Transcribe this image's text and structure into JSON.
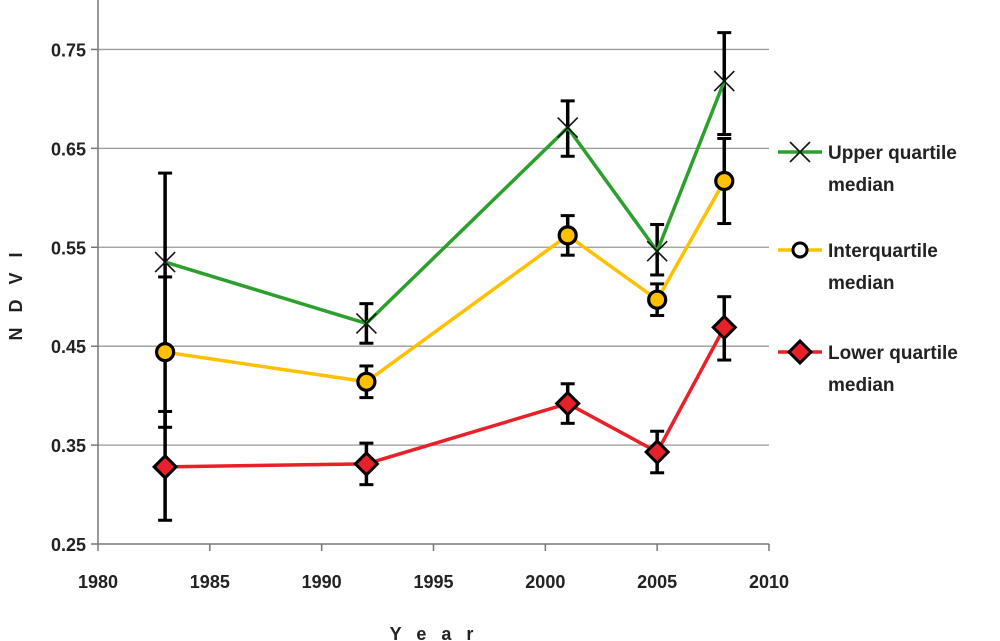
{
  "chart_data": {
    "type": "line",
    "xlabel": "Y e a r",
    "ylabel": "N D V I",
    "xlim": [
      1980,
      2010
    ],
    "ylim": [
      0.25,
      0.8
    ],
    "x_ticks": [
      1980,
      1985,
      1990,
      1995,
      2000,
      2005,
      2010
    ],
    "y_ticks": [
      0.25,
      0.35,
      0.45,
      0.55,
      0.65,
      0.75
    ],
    "x_tick_labels": [
      "1980",
      "1985",
      "1990",
      "1995",
      "2000",
      "2005",
      "2010"
    ],
    "y_tick_labels": [
      "0.25",
      "0.35",
      "0.45",
      "0.55",
      "0.65",
      "0.75"
    ],
    "grid": "horizontal",
    "legend_position": "right",
    "x": [
      1983,
      1992,
      2001,
      2005,
      2008
    ],
    "series": [
      {
        "name": "Upper quartile median",
        "legend_lines": [
          "Upper quartile",
          "median"
        ],
        "color": "#2ca02c",
        "marker": "x",
        "values": [
          0.535,
          0.473,
          0.671,
          0.546,
          0.718
        ],
        "error_low": [
          0.445,
          0.453,
          0.642,
          0.522,
          0.664
        ],
        "error_high": [
          0.625,
          0.493,
          0.698,
          0.573,
          0.767
        ]
      },
      {
        "name": "Interquartile median",
        "legend_lines": [
          "Interquartile",
          "median"
        ],
        "color": "#ffc000",
        "marker": "circle",
        "values": [
          0.444,
          0.414,
          0.562,
          0.497,
          0.617
        ],
        "error_low": [
          0.368,
          0.398,
          0.542,
          0.481,
          0.574
        ],
        "error_high": [
          0.52,
          0.43,
          0.582,
          0.513,
          0.66
        ]
      },
      {
        "name": "Lower quartile median",
        "legend_lines": [
          "Lower quartile",
          "median"
        ],
        "color": "#e8202a",
        "marker": "diamond",
        "values": [
          0.328,
          0.331,
          0.392,
          0.343,
          0.469
        ],
        "error_low": [
          0.274,
          0.31,
          0.372,
          0.322,
          0.436
        ],
        "error_high": [
          0.384,
          0.352,
          0.412,
          0.364,
          0.5
        ]
      }
    ]
  }
}
